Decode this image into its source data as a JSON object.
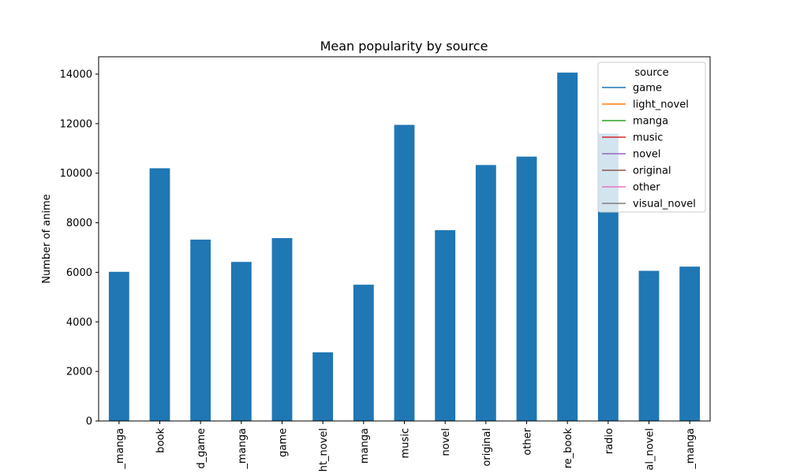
{
  "chart_data": {
    "type": "bar",
    "title": "Mean popularity by source",
    "xlabel": "",
    "ylabel": "Number of anime",
    "categories": [
      "_manga",
      "book",
      "d_game",
      "_manga",
      "game",
      "ht_novel",
      "manga",
      "music",
      "novel",
      "original",
      "other",
      "re_book",
      "radio",
      "al_novel",
      "_manga"
    ],
    "values": [
      6020,
      10200,
      7320,
      6420,
      7380,
      2770,
      5500,
      11950,
      7700,
      10330,
      10670,
      14060,
      11600,
      6060,
      6230
    ],
    "ylim": [
      0,
      14700
    ],
    "yticks": [
      0,
      2000,
      4000,
      6000,
      8000,
      10000,
      12000,
      14000
    ],
    "bar_color": "#1f77b4",
    "grid": false,
    "legend": {
      "title": "source",
      "position": "top-right",
      "entries": [
        {
          "label": "game",
          "color": "#1f77b4"
        },
        {
          "label": "light_novel",
          "color": "#ff7f0e"
        },
        {
          "label": "manga",
          "color": "#2ca02c"
        },
        {
          "label": "music",
          "color": "#d62728"
        },
        {
          "label": "novel",
          "color": "#9467bd"
        },
        {
          "label": "original",
          "color": "#8c564b"
        },
        {
          "label": "other",
          "color": "#e377c2"
        },
        {
          "label": "visual_novel",
          "color": "#7f7f7f"
        }
      ]
    }
  }
}
